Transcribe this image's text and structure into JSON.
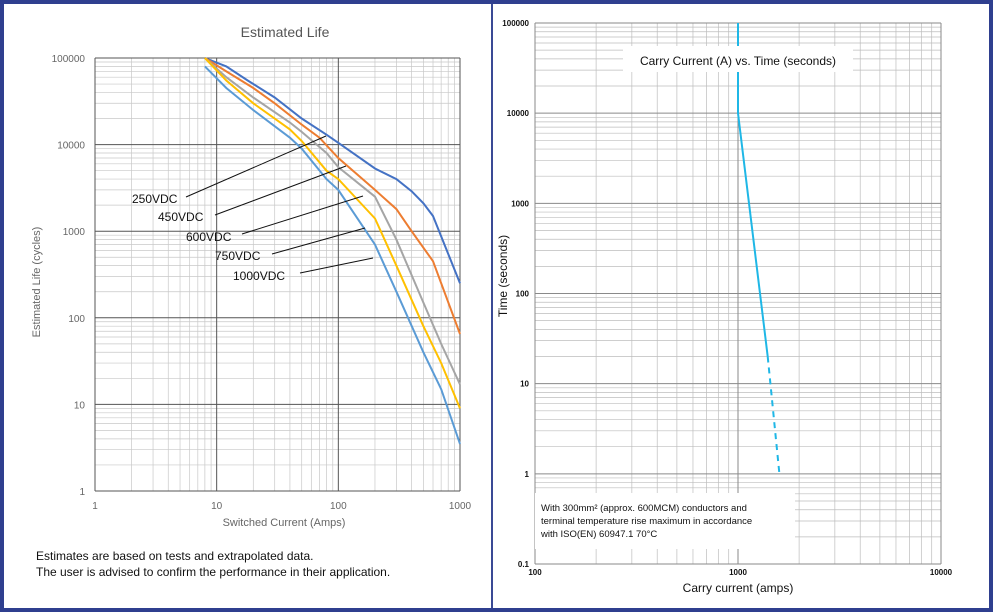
{
  "chart_data": [
    {
      "type": "line",
      "title": "Estimated Life",
      "xlabel": "Switched Current (Amps)",
      "ylabel": "Estimated Life (cycles)",
      "xscale": "log",
      "yscale": "log",
      "xlim": [
        1,
        1000
      ],
      "ylim": [
        1,
        100000
      ],
      "x_ticks": [
        "1",
        "10",
        "100",
        "1000"
      ],
      "y_ticks": [
        "1",
        "10",
        "100",
        "1000",
        "10000",
        "100000"
      ],
      "grid": true,
      "series": [
        {
          "name": "250VDC",
          "color": "#4472c4",
          "points": [
            [
              8,
              100000
            ],
            [
              12,
              80000
            ],
            [
              18,
              55000
            ],
            [
              30,
              35000
            ],
            [
              50,
              20000
            ],
            [
              80,
              13000
            ],
            [
              100,
              10500
            ],
            [
              200,
              5300
            ],
            [
              300,
              4000
            ],
            [
              400,
              2900
            ],
            [
              500,
              2100
            ],
            [
              600,
              1500
            ],
            [
              1000,
              250
            ]
          ]
        },
        {
          "name": "450VDC",
          "color": "#ed7d31",
          "points": [
            [
              8,
              100000
            ],
            [
              12,
              70000
            ],
            [
              20,
              45000
            ],
            [
              30,
              30000
            ],
            [
              50,
              17000
            ],
            [
              70,
              12000
            ],
            [
              100,
              7000
            ],
            [
              200,
              3000
            ],
            [
              300,
              1800
            ],
            [
              400,
              1000
            ],
            [
              600,
              450
            ],
            [
              1000,
              65
            ]
          ]
        },
        {
          "name": "600VDC",
          "color": "#a5a5a5",
          "points": [
            [
              8,
              100000
            ],
            [
              12,
              60000
            ],
            [
              20,
              35000
            ],
            [
              40,
              18000
            ],
            [
              50,
              14000
            ],
            [
              80,
              8000
            ],
            [
              100,
              5500
            ],
            [
              200,
              2500
            ],
            [
              300,
              800
            ],
            [
              500,
              150
            ],
            [
              700,
              50
            ],
            [
              1000,
              17
            ]
          ]
        },
        {
          "name": "750VDC",
          "color": "#ffc000",
          "points": [
            [
              8,
              100000
            ],
            [
              12,
              55000
            ],
            [
              20,
              30000
            ],
            [
              40,
              15000
            ],
            [
              50,
              11000
            ],
            [
              80,
              5000
            ],
            [
              100,
              4000
            ],
            [
              200,
              1400
            ],
            [
              300,
              400
            ],
            [
              500,
              80
            ],
            [
              700,
              30
            ],
            [
              1000,
              9
            ]
          ]
        },
        {
          "name": "1000VDC",
          "color": "#5b9bd5",
          "points": [
            [
              8,
              80000
            ],
            [
              12,
              45000
            ],
            [
              20,
              25000
            ],
            [
              40,
              12000
            ],
            [
              50,
              9000
            ],
            [
              80,
              4000
            ],
            [
              100,
              3000
            ],
            [
              200,
              700
            ],
            [
              300,
              200
            ],
            [
              500,
              40
            ],
            [
              700,
              15
            ],
            [
              1000,
              3.5
            ]
          ]
        }
      ],
      "labels": [
        "250VDC",
        "450VDC",
        "600VDC",
        "750VDC",
        "1000VDC"
      ]
    },
    {
      "type": "line",
      "title": "Carry Current (A) vs. Time (seconds)",
      "xlabel": "Carry current (amps)",
      "ylabel": "Time (seconds)",
      "xscale": "log",
      "yscale": "log",
      "xlim": [
        100,
        10000
      ],
      "ylim": [
        0.1,
        100000
      ],
      "x_ticks": [
        "100",
        "1000",
        "10000"
      ],
      "y_ticks": [
        "0.1",
        "1",
        "10",
        "100",
        "1000",
        "10000",
        "100000"
      ],
      "grid": true,
      "series": [
        {
          "color": "#1fb7e6",
          "points": [
            [
              1000,
              100000
            ],
            [
              1000,
              10000
            ],
            [
              1400,
              20
            ]
          ],
          "style": "solid"
        },
        {
          "color": "#1fb7e6",
          "points": [
            [
              1400,
              20
            ],
            [
              1600,
              1
            ]
          ],
          "style": "dashed"
        }
      ],
      "annotation": [
        "With 300mm² (approx. 600MCM) conductors and",
        "terminal temperature rise maximum in accordance",
        "with ISO(EN) 60947.1 70°C"
      ]
    }
  ],
  "notes": {
    "line1": "Estimates are based on tests and extrapolated data.",
    "line2": "The user is advised to confirm the performance in their application."
  }
}
